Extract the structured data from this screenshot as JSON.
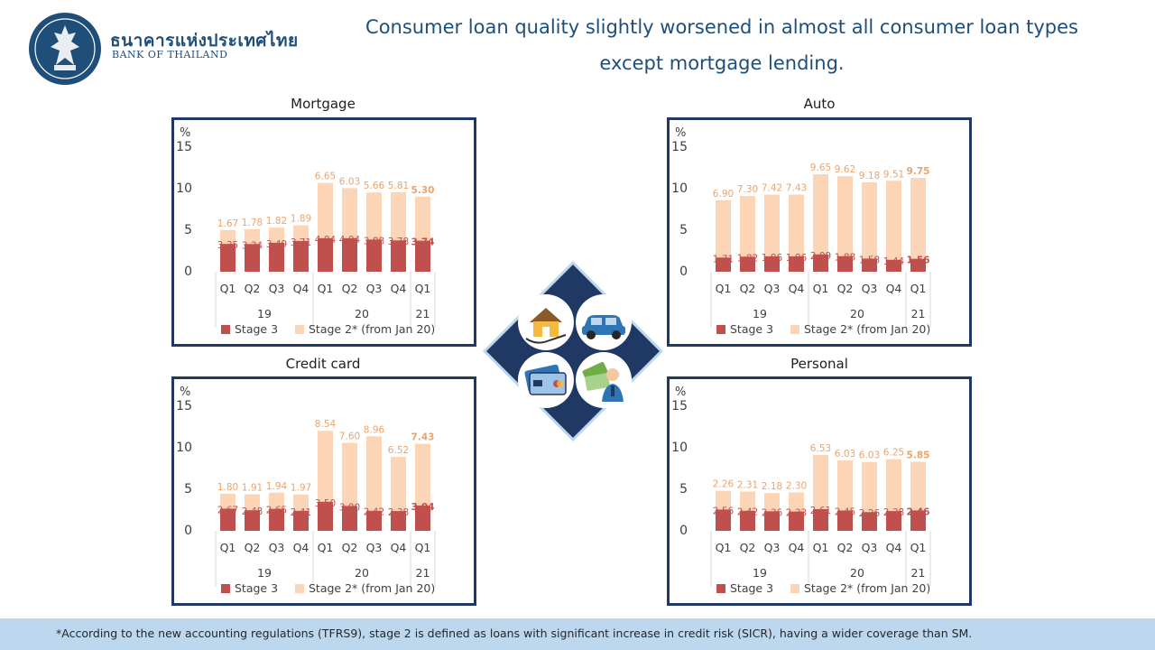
{
  "org": {
    "name_th": "ธนาคารแห่งประเทศไทย",
    "name_en": "BANK OF THAILAND"
  },
  "headline": {
    "line1": "Consumer loan quality slightly worsened in almost all consumer loan types",
    "line2": "except mortgage lending."
  },
  "footer": {
    "note": "*According to the new accounting regulations (TFRS9), stage 2 is defined as loans with significant increase in credit risk (SICR), having a wider coverage than SM."
  },
  "colors": {
    "stage3": "#c0504d",
    "stage2": "#fbd5b5",
    "stage2_label": "#e9a46c",
    "panel_border": "#1f3864",
    "accent": "#1f4e79"
  },
  "icons": [
    "house-icon",
    "car-icon",
    "credit-card-icon",
    "money-icon"
  ],
  "chart_data": [
    {
      "type": "bar",
      "stacked": true,
      "title": "Mortgage",
      "ylabel": "%",
      "ylim": [
        0,
        15
      ],
      "yticks": [
        0,
        5,
        10,
        15
      ],
      "categories": [
        "Q1",
        "Q2",
        "Q3",
        "Q4",
        "Q1",
        "Q2",
        "Q3",
        "Q4",
        "Q1"
      ],
      "groups": [
        {
          "label": "19",
          "span": 4
        },
        {
          "label": "20",
          "span": 4
        },
        {
          "label": "21",
          "span": 1
        }
      ],
      "series": [
        {
          "name": "Stage 3",
          "values": [
            3.35,
            3.34,
            3.49,
            3.71,
            4.04,
            4.04,
            3.88,
            3.78,
            3.74
          ]
        },
        {
          "name": "Stage 2* (from Jan 20)",
          "values": [
            1.67,
            1.78,
            1.82,
            1.89,
            6.65,
            6.03,
            5.66,
            5.81,
            5.3
          ]
        }
      ]
    },
    {
      "type": "bar",
      "stacked": true,
      "title": "Auto",
      "ylabel": "%",
      "ylim": [
        0,
        15
      ],
      "yticks": [
        0,
        5,
        10,
        15
      ],
      "categories": [
        "Q1",
        "Q2",
        "Q3",
        "Q4",
        "Q1",
        "Q2",
        "Q3",
        "Q4",
        "Q1"
      ],
      "groups": [
        {
          "label": "19",
          "span": 4
        },
        {
          "label": "20",
          "span": 4
        },
        {
          "label": "21",
          "span": 1
        }
      ],
      "series": [
        {
          "name": "Stage 3",
          "values": [
            1.71,
            1.82,
            1.86,
            1.86,
            2.09,
            1.88,
            1.58,
            1.44,
            1.56
          ]
        },
        {
          "name": "Stage 2* (from Jan 20)",
          "values": [
            6.9,
            7.3,
            7.42,
            7.43,
            9.65,
            9.62,
            9.18,
            9.51,
            9.75
          ]
        }
      ]
    },
    {
      "type": "bar",
      "stacked": true,
      "title": "Credit card",
      "ylabel": "%",
      "ylim": [
        0,
        15
      ],
      "yticks": [
        0,
        5,
        10,
        15
      ],
      "categories": [
        "Q1",
        "Q2",
        "Q3",
        "Q4",
        "Q1",
        "Q2",
        "Q3",
        "Q4",
        "Q1"
      ],
      "groups": [
        {
          "label": "19",
          "span": 4
        },
        {
          "label": "20",
          "span": 4
        },
        {
          "label": "21",
          "span": 1
        }
      ],
      "series": [
        {
          "name": "Stage 3",
          "values": [
            2.67,
            2.48,
            2.65,
            2.41,
            3.5,
            3.0,
            2.42,
            2.38,
            3.04
          ]
        },
        {
          "name": "Stage 2* (from Jan 20)",
          "values": [
            1.8,
            1.91,
            1.94,
            1.97,
            8.54,
            7.6,
            8.96,
            6.52,
            7.43
          ]
        }
      ]
    },
    {
      "type": "bar",
      "stacked": true,
      "title": "Personal",
      "ylabel": "%",
      "ylim": [
        0,
        15
      ],
      "yticks": [
        0,
        5,
        10,
        15
      ],
      "categories": [
        "Q1",
        "Q2",
        "Q3",
        "Q4",
        "Q1",
        "Q2",
        "Q3",
        "Q4",
        "Q1"
      ],
      "groups": [
        {
          "label": "19",
          "span": 4
        },
        {
          "label": "20",
          "span": 4
        },
        {
          "label": "21",
          "span": 1
        }
      ],
      "series": [
        {
          "name": "Stage 3",
          "values": [
            2.56,
            2.42,
            2.36,
            2.33,
            2.61,
            2.45,
            2.26,
            2.38,
            2.46
          ]
        },
        {
          "name": "Stage 2* (from Jan 20)",
          "values": [
            2.26,
            2.31,
            2.18,
            2.3,
            6.53,
            6.03,
            6.03,
            6.25,
            5.85
          ]
        }
      ]
    }
  ]
}
